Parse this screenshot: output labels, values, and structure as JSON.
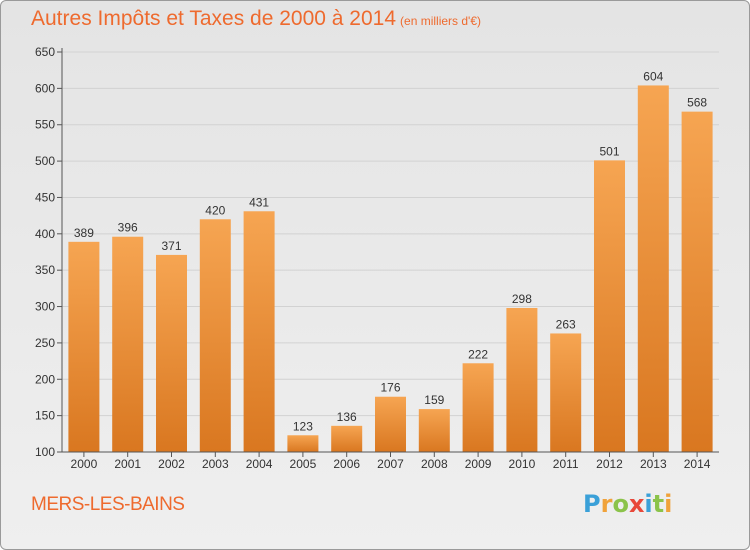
{
  "header": {
    "title": "Autres Impôts et Taxes de 2000 à 2014",
    "subtitle": "(en milliers d'€)"
  },
  "footer": {
    "place_name": "MERS-LES-BAINS",
    "brand": "Proxiti"
  },
  "colors": {
    "accent": "#ee6a2e",
    "bar_top": "#f6a552",
    "bar_bottom": "#d97720"
  },
  "chart_data": {
    "type": "bar",
    "title": "Autres Impôts et Taxes de 2000 à 2014",
    "subtitle": "(en milliers d'€)",
    "xlabel": "",
    "ylabel": "",
    "categories": [
      "2000",
      "2001",
      "2002",
      "2003",
      "2004",
      "2005",
      "2006",
      "2007",
      "2008",
      "2009",
      "2010",
      "2011",
      "2012",
      "2013",
      "2014"
    ],
    "values": [
      389,
      396,
      371,
      420,
      431,
      123,
      136,
      176,
      159,
      222,
      298,
      263,
      501,
      604,
      568
    ],
    "ylim": [
      100,
      650
    ],
    "yticks": [
      100,
      150,
      200,
      250,
      300,
      350,
      400,
      450,
      500,
      550,
      600,
      650
    ],
    "grid": true,
    "legend": "none"
  }
}
